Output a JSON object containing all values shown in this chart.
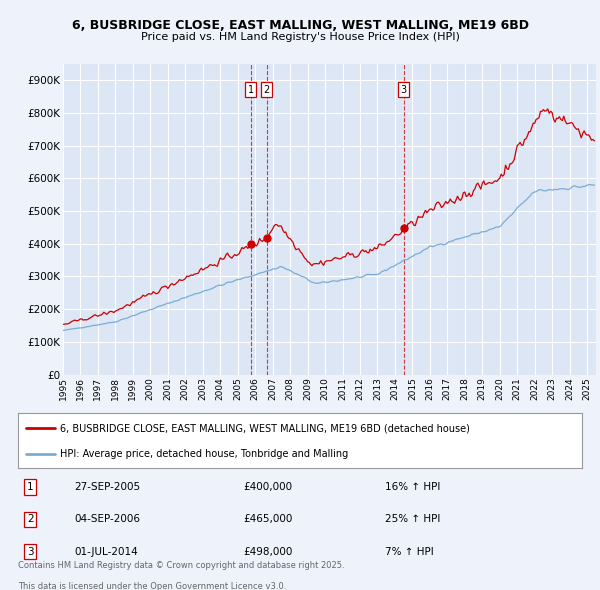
{
  "title_line1": "6, BUSBRIDGE CLOSE, EAST MALLING, WEST MALLING, ME19 6BD",
  "title_line2": "Price paid vs. HM Land Registry's House Price Index (HPI)",
  "ylabel_ticks": [
    "£0",
    "£100K",
    "£200K",
    "£300K",
    "£400K",
    "£500K",
    "£600K",
    "£700K",
    "£800K",
    "£900K"
  ],
  "ytick_values": [
    0,
    100000,
    200000,
    300000,
    400000,
    500000,
    600000,
    700000,
    800000,
    900000
  ],
  "ylim": [
    0,
    950000
  ],
  "xlim_start": 1995.0,
  "xlim_end": 2025.5,
  "background_color": "#eef2fb",
  "plot_bg_color": "#dde6f4",
  "grid_color": "#ffffff",
  "red_line_color": "#cc0000",
  "blue_line_color": "#7aadd4",
  "legend_label_red": "6, BUSBRIDGE CLOSE, EAST MALLING, WEST MALLING, ME19 6BD (detached house)",
  "legend_label_blue": "HPI: Average price, detached house, Tonbridge and Malling",
  "transactions": [
    {
      "label": "1",
      "date": "27-SEP-2005",
      "price": 400000,
      "pct": "16%",
      "direction": "↑",
      "year": 2005.75
    },
    {
      "label": "2",
      "date": "04-SEP-2006",
      "price": 465000,
      "pct": "25%",
      "direction": "↑",
      "year": 2006.67
    },
    {
      "label": "3",
      "date": "01-JUL-2014",
      "price": 498000,
      "pct": "7%",
      "direction": "↑",
      "year": 2014.5
    }
  ],
  "footnote_line1": "Contains HM Land Registry data © Crown copyright and database right 2025.",
  "footnote_line2": "This data is licensed under the Open Government Licence v3.0.",
  "xtick_years": [
    1995,
    1996,
    1997,
    1998,
    1999,
    2000,
    2001,
    2002,
    2003,
    2004,
    2005,
    2006,
    2007,
    2008,
    2009,
    2010,
    2011,
    2012,
    2013,
    2014,
    2015,
    2016,
    2017,
    2018,
    2019,
    2020,
    2021,
    2022,
    2023,
    2024,
    2025
  ]
}
